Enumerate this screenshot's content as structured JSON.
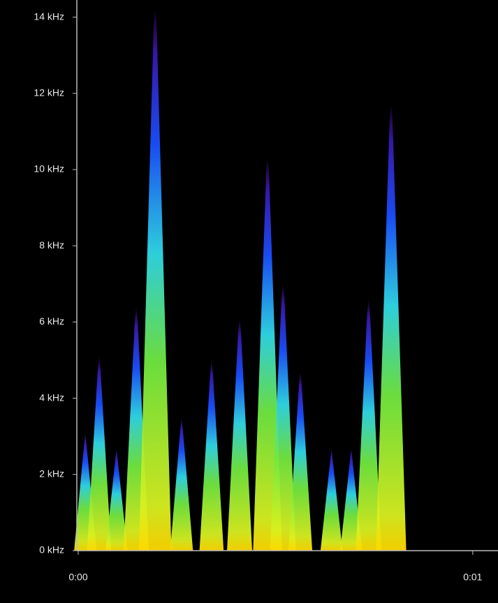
{
  "chart_data": {
    "type": "spectrogram",
    "x": [
      0.018,
      0.053,
      0.097,
      0.147,
      0.195,
      0.262,
      0.338,
      0.409,
      0.48,
      0.519,
      0.563,
      0.642,
      0.692,
      0.736,
      0.793
    ],
    "values": [
      3.1,
      5.1,
      2.7,
      6.4,
      14.2,
      3.5,
      5.0,
      6.1,
      10.3,
      7.0,
      4.7,
      2.7,
      2.7,
      6.6,
      11.7
    ],
    "xlim": [
      0,
      1.064
    ],
    "xticks": [
      {
        "value": 0,
        "label": "0:00"
      },
      {
        "value": 1,
        "label": "0:01"
      }
    ],
    "ylim": [
      0,
      14.45
    ],
    "yticks": [
      {
        "value": 0,
        "label": "0 kHz"
      },
      {
        "value": 2,
        "label": "2 kHz"
      },
      {
        "value": 4,
        "label": "4 kHz"
      },
      {
        "value": 6,
        "label": "6 kHz"
      },
      {
        "value": 8,
        "label": "8 kHz"
      },
      {
        "value": 10,
        "label": "10 kHz"
      },
      {
        "value": 12,
        "label": "12 kHz"
      },
      {
        "value": 14,
        "label": "14 kHz"
      }
    ]
  }
}
